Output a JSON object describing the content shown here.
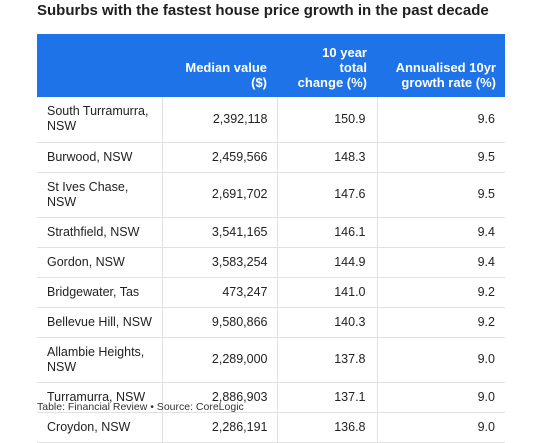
{
  "title": "Suburbs with the fastest house price growth in the past decade",
  "source": "Table: Financial Review • Source: CoreLogic",
  "chart_data": {
    "type": "table",
    "title": "Suburbs with the fastest house price growth in the past decade",
    "columns": [
      "",
      "Median value ($)",
      "10 year total change (%)",
      "Annualised 10yr growth rate (%)"
    ],
    "header_lines": [
      [
        ""
      ],
      [
        "Median value",
        "($)"
      ],
      [
        "10 year",
        "total",
        "change (%)"
      ],
      [
        "Annualised 10yr",
        "growth rate (%)"
      ]
    ],
    "rows": [
      {
        "suburb": "South Turramurra, NSW",
        "median_value": "2,392,118",
        "total_change": "150.9",
        "growth_rate": "9.6"
      },
      {
        "suburb": "Burwood, NSW",
        "median_value": "2,459,566",
        "total_change": "148.3",
        "growth_rate": "9.5"
      },
      {
        "suburb": "St Ives Chase, NSW",
        "median_value": "2,691,702",
        "total_change": "147.6",
        "growth_rate": "9.5"
      },
      {
        "suburb": "Strathfield, NSW",
        "median_value": "3,541,165",
        "total_change": "146.1",
        "growth_rate": "9.4"
      },
      {
        "suburb": "Gordon, NSW",
        "median_value": "3,583,254",
        "total_change": "144.9",
        "growth_rate": "9.4"
      },
      {
        "suburb": "Bridgewater, Tas",
        "median_value": "473,247",
        "total_change": "141.0",
        "growth_rate": "9.2"
      },
      {
        "suburb": "Bellevue Hill, NSW",
        "median_value": "9,580,866",
        "total_change": "140.3",
        "growth_rate": "9.2"
      },
      {
        "suburb": "Allambie Heights, NSW",
        "median_value": "2,289,000",
        "total_change": "137.8",
        "growth_rate": "9.0"
      },
      {
        "suburb": "Turramurra, NSW",
        "median_value": "2,886,903",
        "total_change": "137.1",
        "growth_rate": "9.0"
      },
      {
        "suburb": "Croydon, NSW",
        "median_value": "2,286,191",
        "total_change": "136.8",
        "growth_rate": "9.0"
      }
    ]
  },
  "colors": {
    "header_background": "#1e73e8",
    "header_text": "#ffffff",
    "row_divider": "#e1e1e1"
  }
}
